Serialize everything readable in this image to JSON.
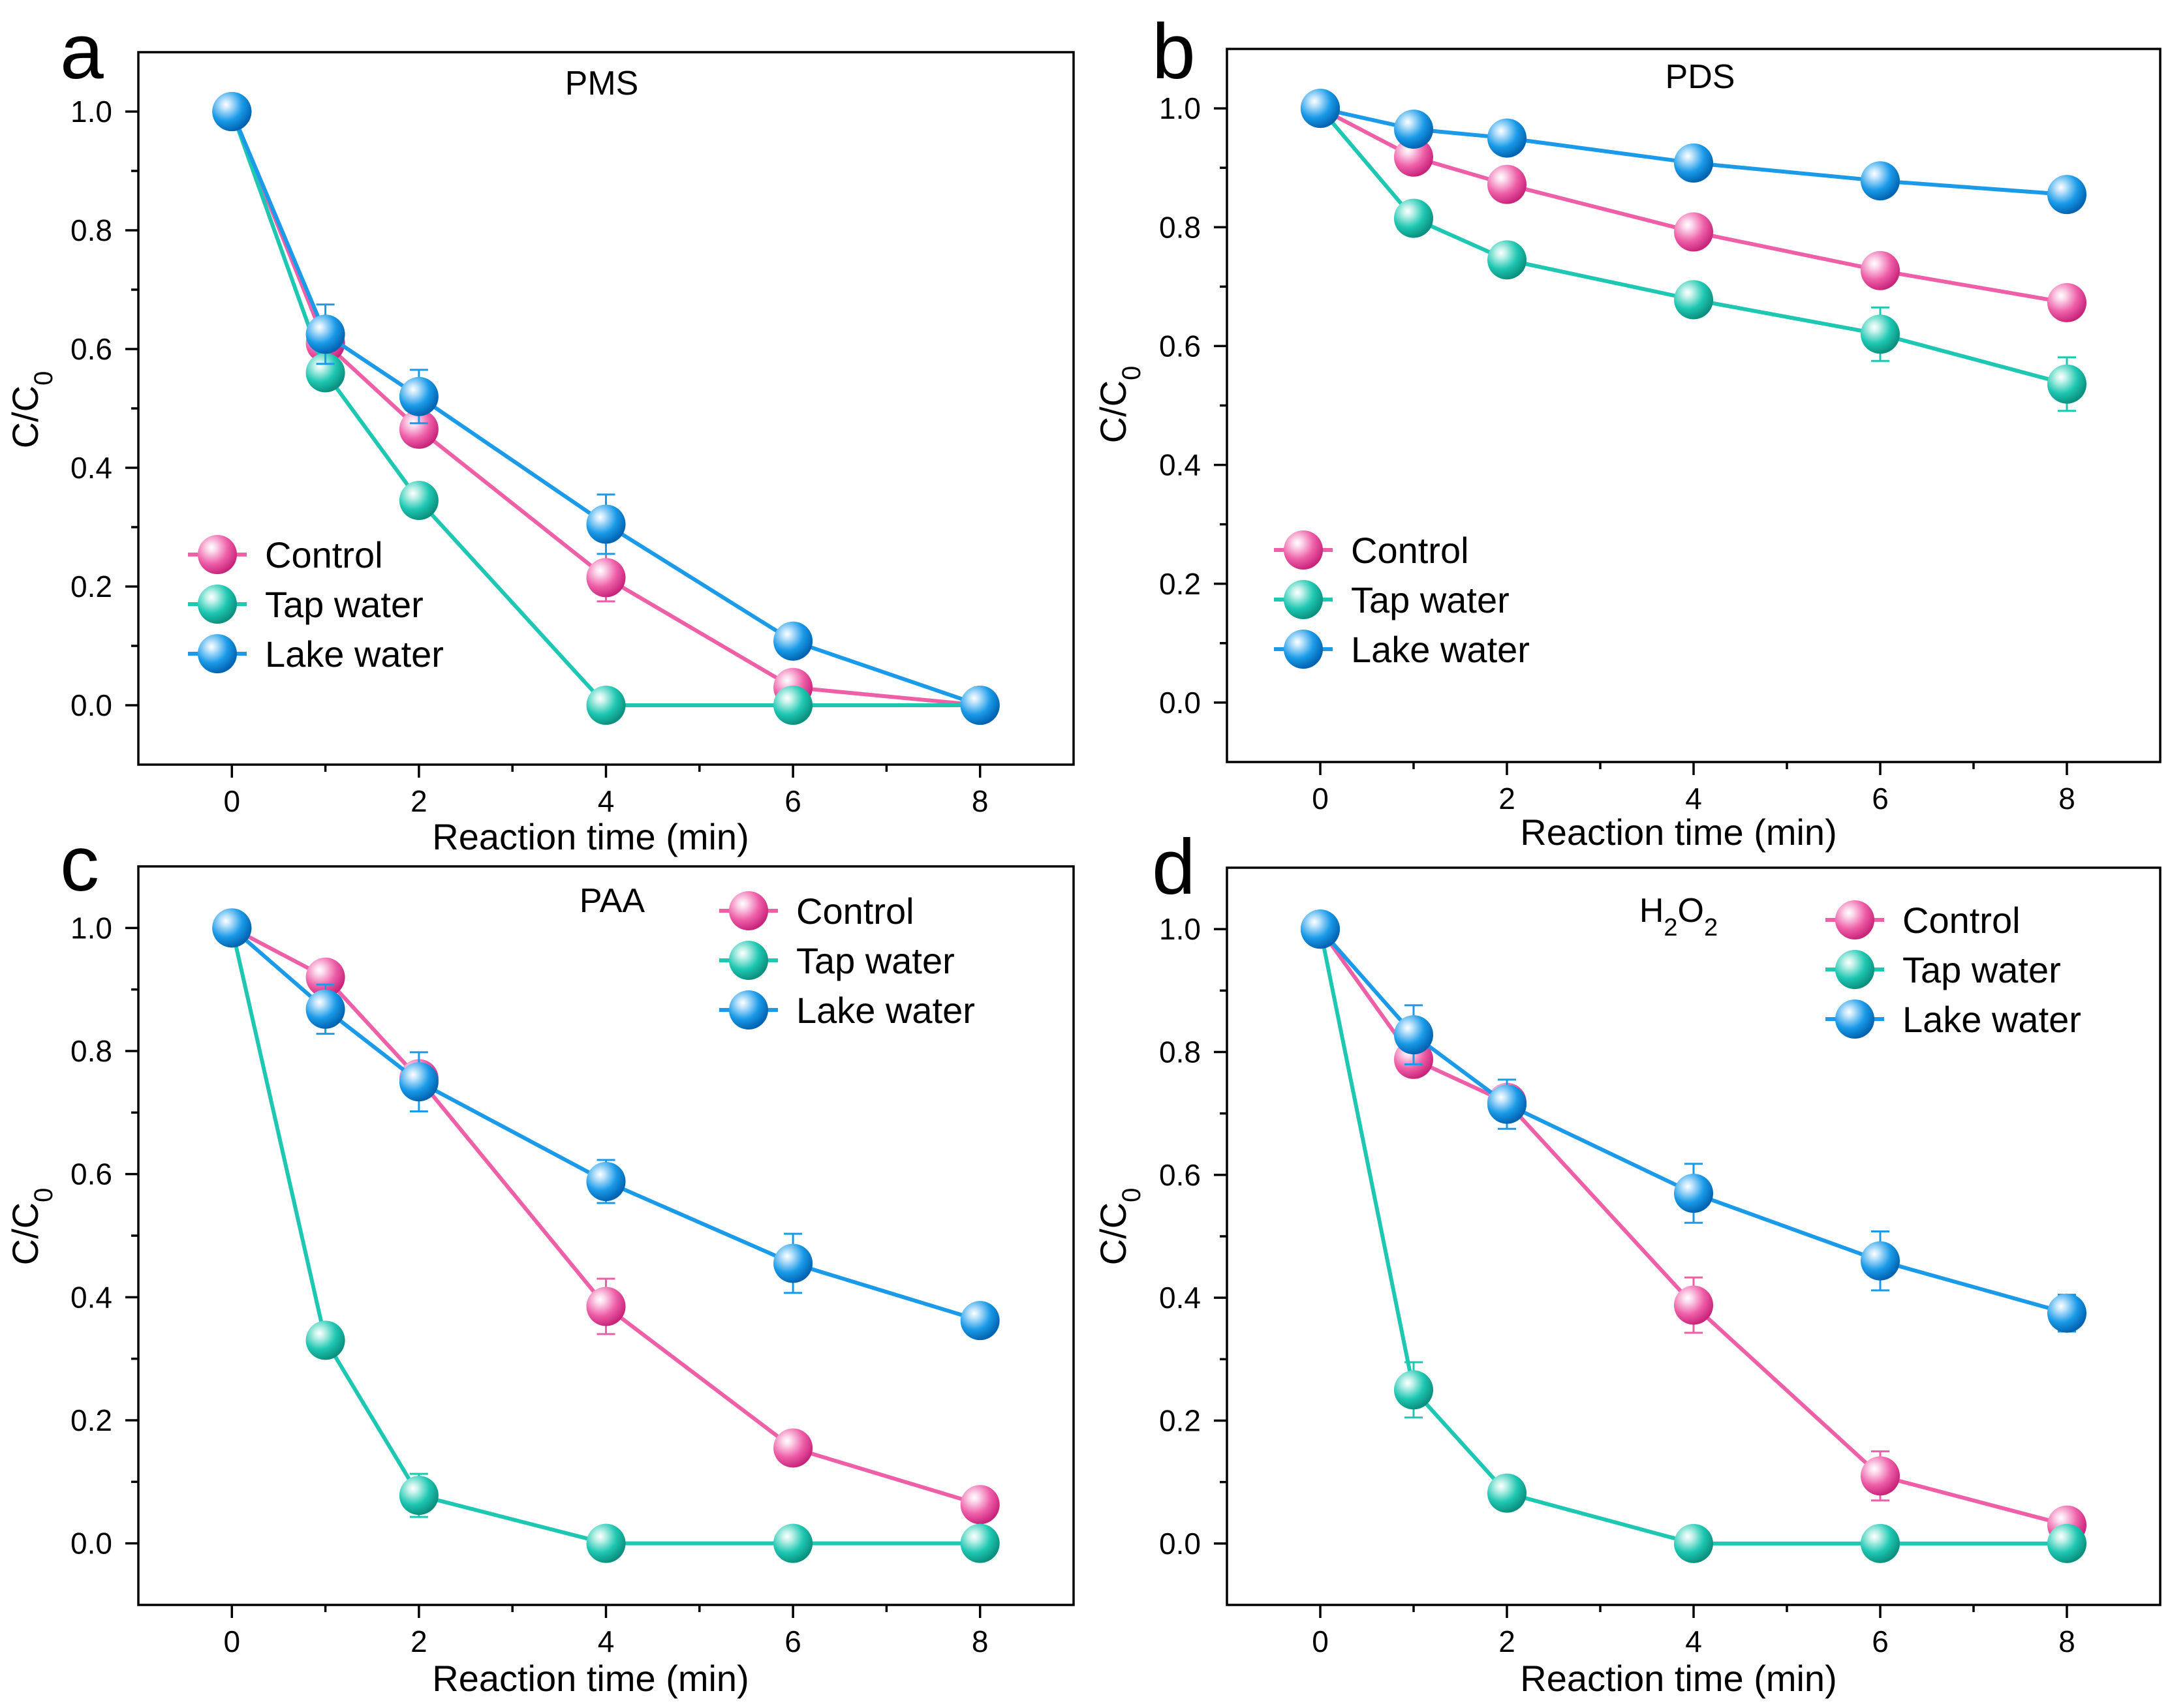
{
  "colors": {
    "control": "#ee5fa8",
    "tap_water": "#1ec7b2",
    "lake_water": "#1a9ae8"
  },
  "chart_data": [
    {
      "type": "line",
      "panel": "a",
      "title": "PMS",
      "xlabel": "Reaction time (min)",
      "ylabel": "C/C0",
      "xlim": [
        -1,
        9
      ],
      "ylim": [
        -0.1,
        1.1
      ],
      "xticks": [
        0,
        2,
        4,
        6,
        8
      ],
      "yticks": [
        0.0,
        0.2,
        0.4,
        0.6,
        0.8,
        1.0
      ],
      "x": [
        0,
        1,
        2,
        4,
        6,
        8
      ],
      "legend": "bottom-left",
      "series": [
        {
          "name": "Control",
          "color_key": "control",
          "values": [
            1.0,
            0.61,
            0.465,
            0.215,
            0.03,
            0.0
          ],
          "errors": [
            0,
            0.02,
            0.02,
            0.04,
            0.01,
            0
          ]
        },
        {
          "name": "Tap water",
          "color_key": "tap_water",
          "values": [
            1.0,
            0.56,
            0.345,
            0.0,
            0.0,
            0.0
          ],
          "errors": [
            0,
            0.02,
            0.01,
            0,
            0,
            0
          ]
        },
        {
          "name": "Lake water",
          "color_key": "lake_water",
          "values": [
            1.0,
            0.625,
            0.52,
            0.305,
            0.108,
            0.0
          ],
          "errors": [
            0,
            0.05,
            0.045,
            0.05,
            0.01,
            0
          ]
        }
      ]
    },
    {
      "type": "line",
      "panel": "b",
      "title": "PDS",
      "xlabel": "Reaction time (min)",
      "ylabel": "C/C0",
      "xlim": [
        -1,
        9
      ],
      "ylim": [
        -0.1,
        1.1
      ],
      "xticks": [
        0,
        2,
        4,
        6,
        8
      ],
      "yticks": [
        0.0,
        0.2,
        0.4,
        0.6,
        0.8,
        1.0
      ],
      "x": [
        0,
        1,
        2,
        4,
        6,
        8
      ],
      "legend": "bottom-left",
      "series": [
        {
          "name": "Control",
          "color_key": "control",
          "values": [
            1.0,
            0.918,
            0.872,
            0.792,
            0.727,
            0.673
          ],
          "errors": [
            0,
            0.01,
            0.01,
            0.01,
            0.01,
            0.01
          ]
        },
        {
          "name": "Tap water",
          "color_key": "tap_water",
          "values": [
            1.0,
            0.815,
            0.745,
            0.678,
            0.62,
            0.536
          ],
          "errors": [
            0,
            0.02,
            0.02,
            0.02,
            0.045,
            0.045
          ]
        },
        {
          "name": "Lake water",
          "color_key": "lake_water",
          "values": [
            1.0,
            0.965,
            0.95,
            0.908,
            0.878,
            0.855
          ],
          "errors": [
            0,
            0.01,
            0.01,
            0.01,
            0.01,
            0.01
          ]
        }
      ]
    },
    {
      "type": "line",
      "panel": "c",
      "title": "PAA",
      "xlabel": "Reaction time (min)",
      "ylabel": "C/C0",
      "xlim": [
        -1,
        9
      ],
      "ylim": [
        -0.1,
        1.1
      ],
      "xticks": [
        0,
        2,
        4,
        6,
        8
      ],
      "yticks": [
        0.0,
        0.2,
        0.4,
        0.6,
        0.8,
        1.0
      ],
      "x": [
        0,
        1,
        2,
        4,
        6,
        8
      ],
      "legend": "top-right",
      "series": [
        {
          "name": "Control",
          "color_key": "control",
          "values": [
            1.0,
            0.92,
            0.755,
            0.385,
            0.155,
            0.063
          ],
          "errors": [
            0,
            0.015,
            0.02,
            0.045,
            0.01,
            0.01
          ]
        },
        {
          "name": "Tap water",
          "color_key": "tap_water",
          "values": [
            1.0,
            0.33,
            0.078,
            0.0,
            0.0,
            0.0
          ],
          "errors": [
            0,
            0.01,
            0.035,
            0,
            0,
            0
          ]
        },
        {
          "name": "Lake water",
          "color_key": "lake_water",
          "values": [
            1.0,
            0.868,
            0.75,
            0.588,
            0.455,
            0.362
          ],
          "errors": [
            0,
            0.04,
            0.048,
            0.035,
            0.048,
            0.01
          ]
        }
      ]
    },
    {
      "type": "line",
      "panel": "d",
      "title": "H2O2",
      "xlabel": "Reaction time (min)",
      "ylabel": "C/C0",
      "xlim": [
        -1,
        9
      ],
      "ylim": [
        -0.1,
        1.1
      ],
      "xticks": [
        0,
        2,
        4,
        6,
        8
      ],
      "yticks": [
        0.0,
        0.2,
        0.4,
        0.6,
        0.8,
        1.0
      ],
      "x": [
        0,
        1,
        2,
        4,
        6,
        8
      ],
      "legend": "top-right",
      "series": [
        {
          "name": "Control",
          "color_key": "control",
          "values": [
            1.0,
            0.788,
            0.718,
            0.388,
            0.11,
            0.03
          ],
          "errors": [
            0,
            0.02,
            0.02,
            0.045,
            0.04,
            0.01
          ]
        },
        {
          "name": "Tap water",
          "color_key": "tap_water",
          "values": [
            1.0,
            0.25,
            0.082,
            0.0,
            0.0,
            0.0
          ],
          "errors": [
            0,
            0.045,
            0.01,
            0,
            0,
            0
          ]
        },
        {
          "name": "Lake water",
          "color_key": "lake_water",
          "values": [
            1.0,
            0.828,
            0.715,
            0.57,
            0.46,
            0.375
          ],
          "errors": [
            0,
            0.048,
            0.04,
            0.048,
            0.048,
            0.03
          ]
        }
      ]
    }
  ]
}
